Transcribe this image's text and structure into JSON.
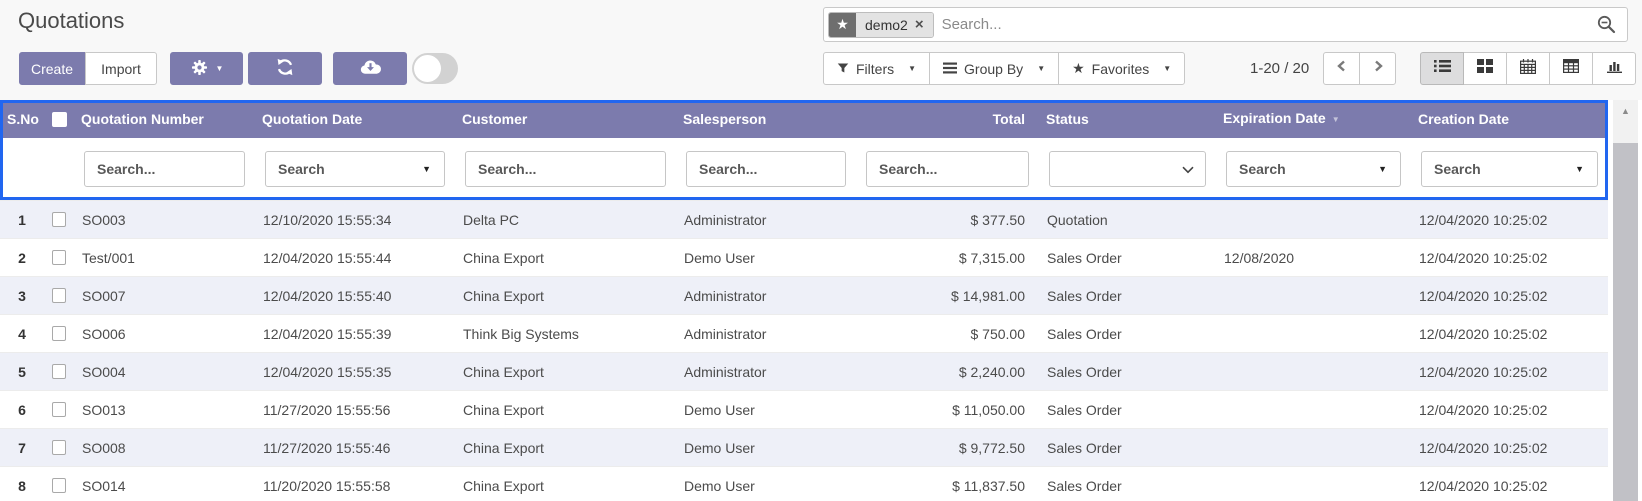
{
  "page": {
    "title": "Quotations"
  },
  "search_bar": {
    "facet_label": "demo2",
    "placeholder": "Search..."
  },
  "toolbar": {
    "create_label": "Create",
    "import_label": "Import",
    "toggle_state": "off"
  },
  "controls": {
    "filters_label": "Filters",
    "group_by_label": "Group By",
    "favorites_label": "Favorites",
    "pager_text": "1-20 / 20",
    "views": [
      "list",
      "kanban",
      "calendar",
      "pivot",
      "graph"
    ],
    "active_view": "list"
  },
  "colors": {
    "accent_purple": "#7c7bad",
    "highlight_blue": "#2166f0",
    "row_alt": "#eef0f8"
  },
  "table": {
    "columns": [
      {
        "key": "sno",
        "label": "S.No",
        "search": "none"
      },
      {
        "key": "check",
        "label": "",
        "search": "none"
      },
      {
        "key": "number",
        "label": "Quotation Number",
        "search": "input",
        "placeholder": "Search..."
      },
      {
        "key": "date",
        "label": "Quotation Date",
        "search": "input_caret",
        "placeholder": "Search"
      },
      {
        "key": "customer",
        "label": "Customer",
        "search": "input",
        "placeholder": "Search..."
      },
      {
        "key": "salesperson",
        "label": "Salesperson",
        "search": "input",
        "placeholder": "Search..."
      },
      {
        "key": "total",
        "label": "Total",
        "search": "input",
        "placeholder": "Search...",
        "align": "right"
      },
      {
        "key": "status",
        "label": "Status",
        "search": "select"
      },
      {
        "key": "expiration",
        "label": "Expiration Date",
        "search": "input_caret",
        "placeholder": "Search",
        "sort": "desc"
      },
      {
        "key": "creation",
        "label": "Creation Date",
        "search": "input_caret",
        "placeholder": "Search"
      }
    ],
    "rows": [
      {
        "sno": "1",
        "number": "SO003",
        "date": "12/10/2020 15:55:34",
        "customer": "Delta PC",
        "salesperson": "Administrator",
        "total": "$ 377.50",
        "status": "Quotation",
        "expiration": "",
        "creation": "12/04/2020 10:25:02"
      },
      {
        "sno": "2",
        "number": "Test/001",
        "date": "12/04/2020 15:55:44",
        "customer": "China Export",
        "salesperson": "Demo User",
        "total": "$ 7,315.00",
        "status": "Sales Order",
        "expiration": "12/08/2020",
        "creation": "12/04/2020 10:25:02"
      },
      {
        "sno": "3",
        "number": "SO007",
        "date": "12/04/2020 15:55:40",
        "customer": "China Export",
        "salesperson": "Administrator",
        "total": "$ 14,981.00",
        "status": "Sales Order",
        "expiration": "",
        "creation": "12/04/2020 10:25:02"
      },
      {
        "sno": "4",
        "number": "SO006",
        "date": "12/04/2020 15:55:39",
        "customer": "Think Big Systems",
        "salesperson": "Administrator",
        "total": "$ 750.00",
        "status": "Sales Order",
        "expiration": "",
        "creation": "12/04/2020 10:25:02"
      },
      {
        "sno": "5",
        "number": "SO004",
        "date": "12/04/2020 15:55:35",
        "customer": "China Export",
        "salesperson": "Administrator",
        "total": "$ 2,240.00",
        "status": "Sales Order",
        "expiration": "",
        "creation": "12/04/2020 10:25:02"
      },
      {
        "sno": "6",
        "number": "SO013",
        "date": "11/27/2020 15:55:56",
        "customer": "China Export",
        "salesperson": "Demo User",
        "total": "$ 11,050.00",
        "status": "Sales Order",
        "expiration": "",
        "creation": "12/04/2020 10:25:02"
      },
      {
        "sno": "7",
        "number": "SO008",
        "date": "11/27/2020 15:55:46",
        "customer": "China Export",
        "salesperson": "Demo User",
        "total": "$ 9,772.50",
        "status": "Sales Order",
        "expiration": "",
        "creation": "12/04/2020 10:25:02"
      },
      {
        "sno": "8",
        "number": "SO014",
        "date": "11/20/2020 15:55:58",
        "customer": "China Export",
        "salesperson": "Demo User",
        "total": "$ 11,837.50",
        "status": "Sales Order",
        "expiration": "",
        "creation": "12/04/2020 10:25:02"
      }
    ]
  }
}
